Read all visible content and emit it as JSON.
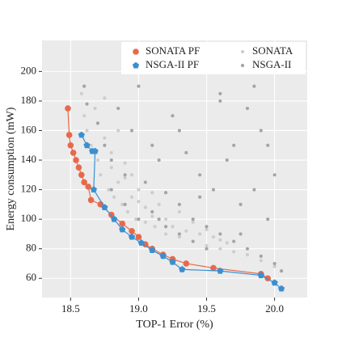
{
  "chart_data": {
    "type": "scatter",
    "xlabel": "TOP-1 Error (%)",
    "ylabel": "Energy consumption (mW)",
    "xlim": [
      18.29,
      20.24
    ],
    "ylim": [
      47,
      221
    ],
    "xticks": [
      {
        "value": 18.5,
        "label": "18.5"
      },
      {
        "value": 19,
        "label": "19.0"
      },
      {
        "value": 19.5,
        "label": "19.5"
      },
      {
        "value": 20,
        "label": "20.0"
      }
    ],
    "yticks": [
      60,
      80,
      100,
      120,
      140,
      160,
      180,
      200
    ],
    "grid": true,
    "legend": "top-right",
    "series": [
      {
        "name": "SONATA",
        "color": "#cdcdcd",
        "marker": "dot",
        "x": [
          18.58,
          18.6,
          18.62,
          18.65,
          18.68,
          18.7,
          18.72,
          18.75,
          18.78,
          18.8,
          18.82,
          18.85,
          18.88,
          18.9,
          18.92,
          18.95,
          18.98,
          19.0,
          19.05,
          19.1,
          19.12,
          19.15,
          19.2,
          19.25,
          19.3,
          19.35,
          19.4,
          19.45,
          19.5,
          19.55,
          19.6,
          19.65,
          19.7,
          19.8,
          19.9,
          20.0,
          18.7,
          18.8,
          18.9,
          19.0,
          19.1,
          19.2,
          19.3,
          19.4,
          19.5,
          19.6,
          18.75,
          18.85,
          18.95,
          19.05
        ],
        "values": [
          185,
          170,
          160,
          150,
          175,
          140,
          130,
          155,
          120,
          135,
          115,
          125,
          110,
          128,
          105,
          115,
          100,
          120,
          98,
          102,
          95,
          110,
          90,
          95,
          88,
          92,
          85,
          90,
          82,
          88,
          80,
          84,
          78,
          76,
          72,
          68,
          165,
          145,
          138,
          112,
          118,
          100,
          105,
          98,
          93,
          86,
          182,
          160,
          130,
          108
        ]
      },
      {
        "name": "NSGA-II",
        "color": "#a0a5ad",
        "marker": "dot",
        "x": [
          18.6,
          18.62,
          18.7,
          18.75,
          18.8,
          18.85,
          18.9,
          18.95,
          19.0,
          19.05,
          19.1,
          19.15,
          19.2,
          19.25,
          19.3,
          19.35,
          19.4,
          19.45,
          19.5,
          19.55,
          19.6,
          19.65,
          19.7,
          19.75,
          19.8,
          19.85,
          19.9,
          19.95,
          20.0,
          20.05,
          18.9,
          19.0,
          19.1,
          19.2,
          19.3,
          19.4,
          19.5,
          19.6,
          19.7,
          19.8,
          19.9,
          20.0,
          18.8,
          19.15,
          19.45,
          19.75,
          19.95,
          19.3,
          19.6,
          19.85
        ],
        "values": [
          190,
          178,
          165,
          150,
          140,
          175,
          130,
          160,
          190,
          125,
          150,
          140,
          118,
          170,
          110,
          145,
          100,
          130,
          95,
          120,
          90,
          140,
          85,
          110,
          80,
          120,
          75,
          100,
          70,
          65,
          110,
          100,
          105,
          95,
          90,
          85,
          80,
          185,
          150,
          175,
          160,
          130,
          120,
          100,
          115,
          90,
          150,
          160,
          180,
          190
        ]
      },
      {
        "name": "SONATA PF",
        "color": "#e8694a",
        "marker": "circle",
        "x": [
          18.48,
          18.49,
          18.5,
          18.52,
          18.54,
          18.56,
          18.58,
          18.6,
          18.63,
          18.65,
          18.72,
          18.8,
          18.88,
          18.95,
          19.0,
          19.05,
          19.1,
          19.18,
          19.25,
          19.35,
          19.55,
          19.9,
          19.95
        ],
        "values": [
          175,
          157,
          150,
          145,
          140,
          135,
          130,
          125,
          122,
          113,
          110,
          103,
          97,
          92,
          88,
          83,
          80,
          76,
          73,
          70,
          67,
          63,
          60
        ]
      },
      {
        "name": "NSGA-II PF",
        "color": "#3a8fd0",
        "marker": "pentagon",
        "x": [
          18.58,
          18.62,
          18.66,
          18.68,
          18.67,
          18.75,
          18.82,
          18.88,
          18.95,
          19.02,
          19.1,
          19.18,
          19.25,
          19.32,
          19.6,
          19.9,
          20.0,
          20.05
        ],
        "values": [
          157,
          150,
          146,
          146,
          120,
          108,
          100,
          93,
          88,
          84,
          79,
          75,
          71,
          66,
          65,
          62,
          57,
          53
        ]
      }
    ]
  }
}
